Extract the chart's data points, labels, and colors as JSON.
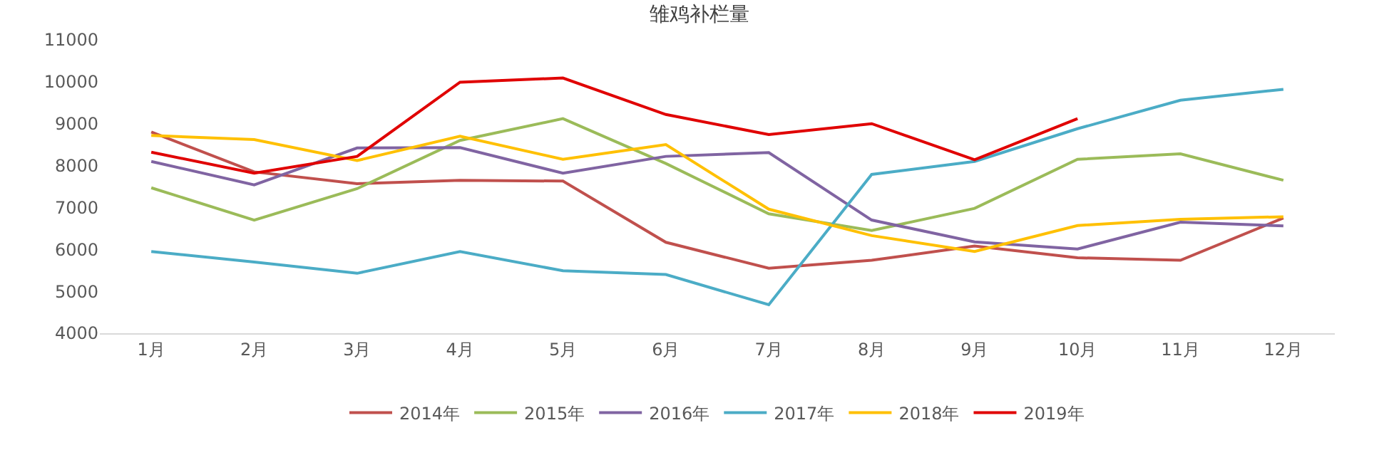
{
  "chart_data": {
    "type": "line",
    "title": "雏鸡补栏量",
    "categories": [
      "1月",
      "2月",
      "3月",
      "4月",
      "5月",
      "6月",
      "7月",
      "8月",
      "9月",
      "10月",
      "11月",
      "12月"
    ],
    "series": [
      {
        "name": "2014年",
        "color": "#c0504d",
        "values": [
          8800,
          7850,
          7570,
          7650,
          7630,
          6170,
          5550,
          5740,
          6080,
          5800,
          5740,
          6750
        ]
      },
      {
        "name": "2015年",
        "color": "#9bbb59",
        "values": [
          7470,
          6700,
          7450,
          8600,
          9120,
          8050,
          6850,
          6450,
          6980,
          8150,
          8280,
          7650
        ]
      },
      {
        "name": "2016年",
        "color": "#8064a2",
        "values": [
          8100,
          7540,
          8420,
          8430,
          7820,
          8220,
          8310,
          6700,
          6180,
          6010,
          6650,
          6560
        ]
      },
      {
        "name": "2017年",
        "color": "#4bacc6",
        "values": [
          5950,
          5700,
          5430,
          5950,
          5490,
          5400,
          4680,
          7790,
          8100,
          8880,
          9560,
          9820
        ]
      },
      {
        "name": "2018年",
        "color": "#ffc000",
        "values": [
          8720,
          8620,
          8120,
          8700,
          8150,
          8500,
          6960,
          6330,
          5950,
          6570,
          6720,
          6780
        ]
      },
      {
        "name": "2019年",
        "color": "#e00000",
        "values": [
          8320,
          7820,
          8220,
          9990,
          10090,
          9220,
          8740,
          9000,
          8140,
          9120,
          null,
          null
        ]
      }
    ],
    "ylim": [
      4000,
      11000
    ],
    "yticks": [
      4000,
      5000,
      6000,
      7000,
      8000,
      9000,
      10000,
      11000
    ],
    "grid": false,
    "legend": "bottom",
    "marker": "none",
    "line_style": "solid"
  }
}
